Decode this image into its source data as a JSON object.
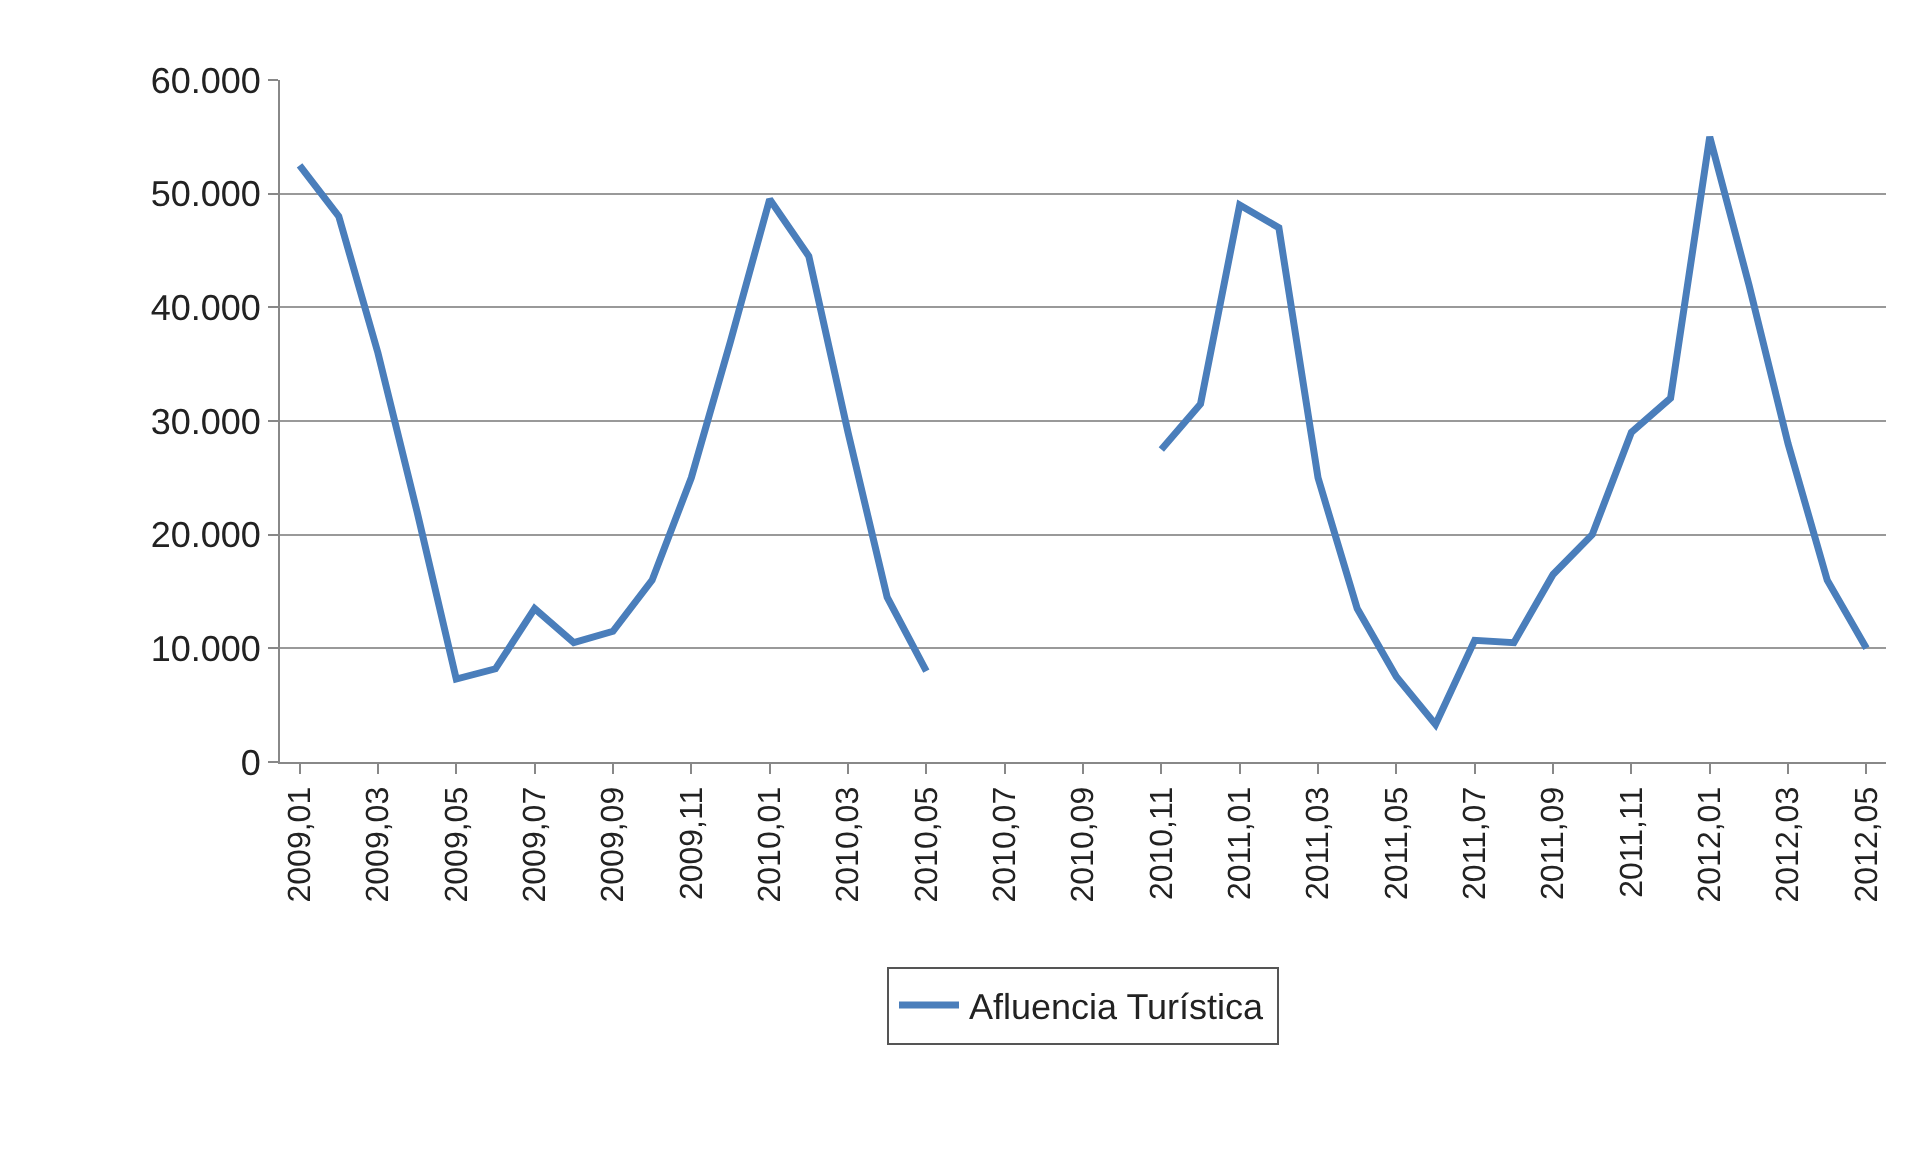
{
  "chart_data": {
    "type": "line",
    "categories": [
      "2009,01",
      null,
      "2009,03",
      null,
      "2009,05",
      null,
      "2009,07",
      null,
      "2009,09",
      null,
      "2009,11",
      null,
      "2010,01",
      null,
      "2010,03",
      null,
      "2010,05",
      null,
      "2010,07",
      null,
      "2010,09",
      null,
      "2010,11",
      null,
      "2011,01",
      null,
      "2011,03",
      null,
      "2011,05",
      null,
      "2011,07",
      null,
      "2011,09",
      null,
      "2011,11",
      null,
      "2012,01",
      null,
      "2012,03",
      null,
      "2012,05"
    ],
    "series": [
      {
        "name": "Afluencia Turística",
        "color": "#4a7ebb",
        "values": [
          52500,
          48000,
          36000,
          22000,
          7300,
          8200,
          13500,
          10500,
          11500,
          16000,
          25000,
          37000,
          49500,
          44500,
          29000,
          14500,
          8000,
          null,
          null,
          null,
          null,
          null,
          27500,
          31500,
          49000,
          47000,
          25000,
          13500,
          7500,
          3300,
          10700,
          10500,
          16500,
          20000,
          29000,
          32000,
          55000,
          42000,
          28000,
          16000,
          10000
        ]
      }
    ],
    "ylim": [
      0,
      60000
    ],
    "yticks": [
      0,
      {
        "value": 10000,
        "label": "10.000"
      },
      {
        "value": 20000,
        "label": "20.000"
      },
      {
        "value": 30000,
        "label": "30.000"
      },
      {
        "value": 40000,
        "label": "40.000"
      },
      {
        "value": 50000,
        "label": "50.000"
      },
      {
        "value": 60000,
        "label": "60.000"
      }
    ],
    "grid": "y",
    "legend": "bottom",
    "marker": "none",
    "line_style": "solid"
  }
}
